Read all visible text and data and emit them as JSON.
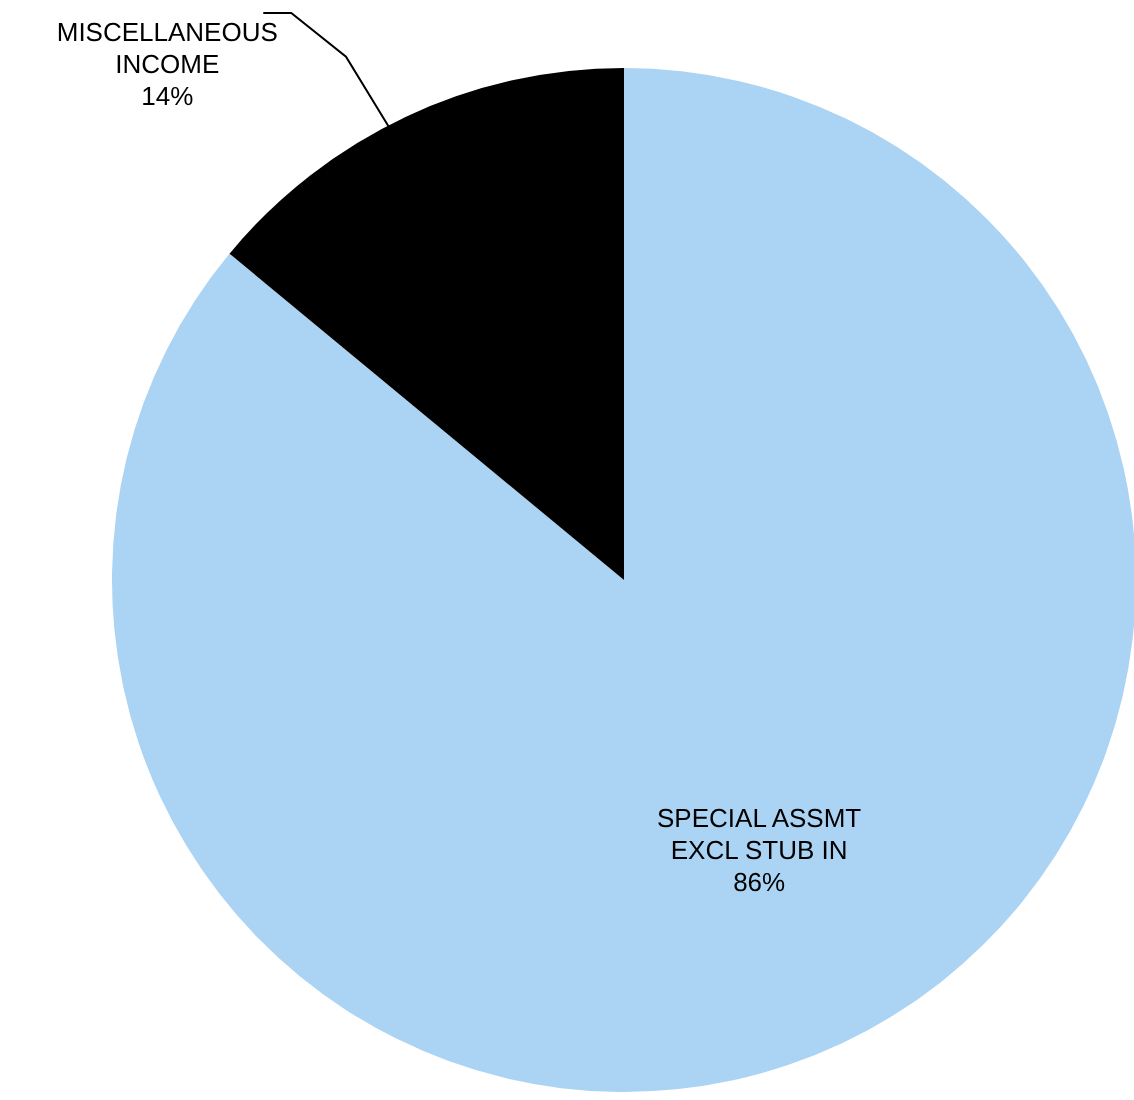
{
  "chart_data": {
    "type": "pie",
    "categories": [
      "SPECIAL ASSMT EXCL STUB IN",
      "MISCELLANEOUS INCOME"
    ],
    "values": [
      86,
      14
    ],
    "colors": [
      "#abd3f3",
      "#000000"
    ],
    "value_labels": [
      "86%",
      "14%"
    ]
  }
}
